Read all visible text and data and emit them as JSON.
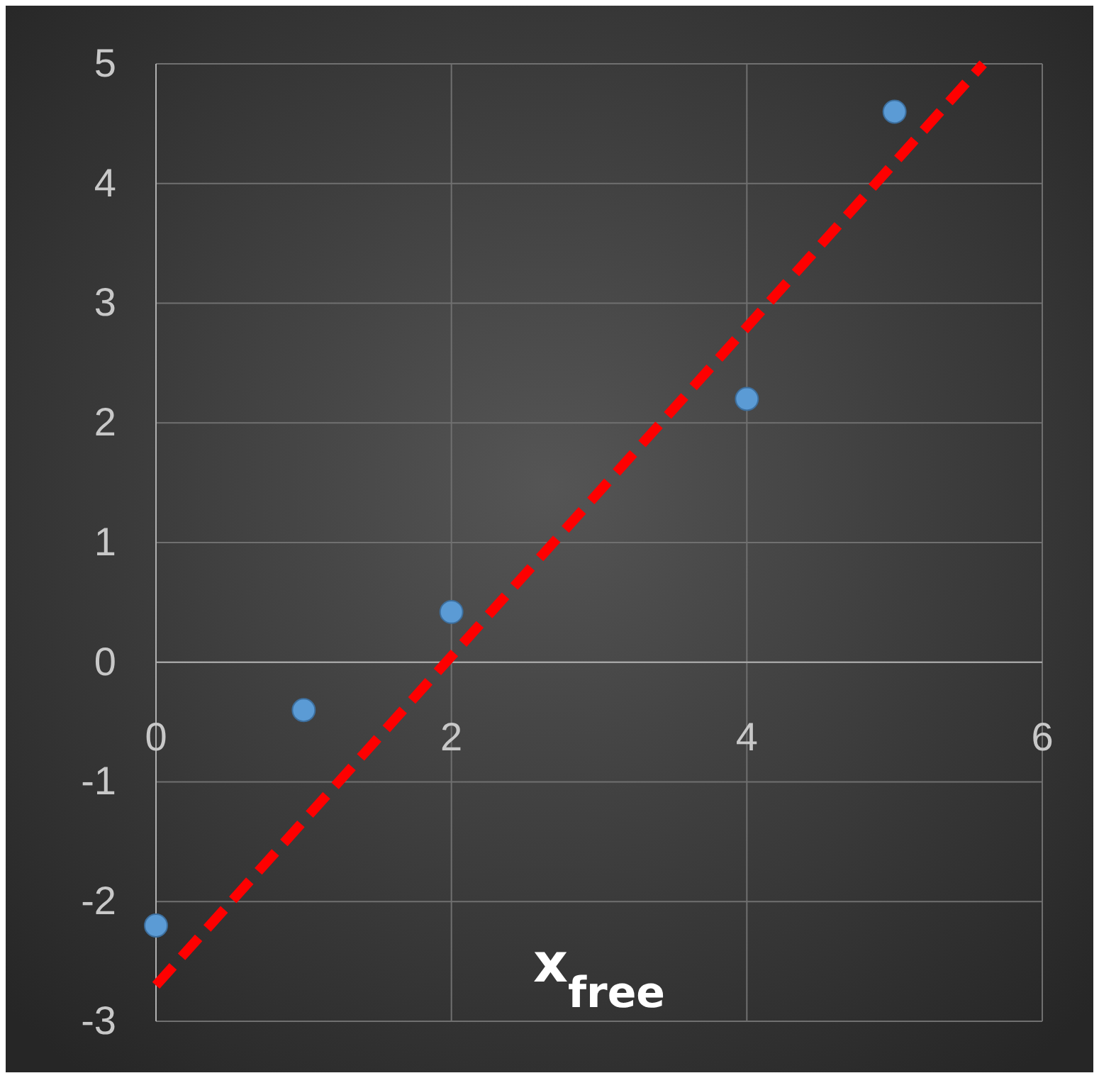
{
  "chart_data": {
    "type": "scatter",
    "xlabel": "x$_{free}$",
    "xlim": [
      0,
      6
    ],
    "xticks": [
      0,
      2,
      4,
      6
    ],
    "ylim": [
      -3,
      5
    ],
    "yticks": [
      -3,
      -2,
      -1,
      0,
      1,
      2,
      3,
      4,
      5
    ],
    "grid": true,
    "series": [
      {
        "marker": "circle",
        "color": "#5b9bd5",
        "x": [
          0,
          1,
          2,
          4,
          5
        ],
        "values": [
          -2.2,
          -0.4,
          0.42,
          2.2,
          4.6
        ]
      },
      {
        "type": "line",
        "color": "#ff0000",
        "line_style": "dashed",
        "x": [
          0,
          5.6
        ],
        "values": [
          -2.7,
          5.0
        ]
      }
    ]
  }
}
